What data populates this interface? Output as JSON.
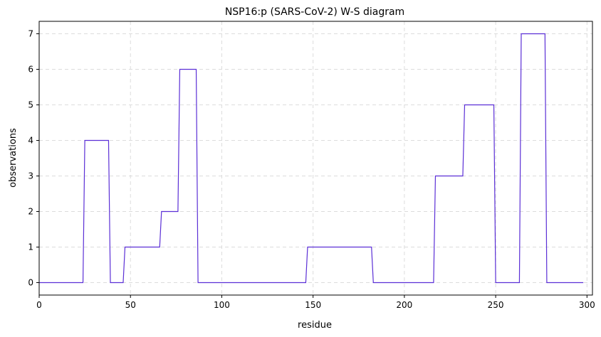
{
  "chart_data": {
    "type": "line",
    "title": "NSP16:p (SARS-CoV-2) W-S diagram",
    "xlabel": "residue",
    "ylabel": "observations",
    "xlim": [
      0,
      303
    ],
    "ylim": [
      -0.35,
      7.35
    ],
    "x_ticks": [
      0,
      50,
      100,
      150,
      200,
      250,
      300
    ],
    "y_ticks": [
      0,
      1,
      2,
      3,
      4,
      5,
      6,
      7
    ],
    "grid": true,
    "grid_style": "dashed",
    "series": [
      {
        "color": "#5b2fd6",
        "x": [
          0,
          24,
          25,
          38,
          39,
          46,
          47,
          66,
          67,
          76,
          77,
          86,
          87,
          146,
          147,
          182,
          183,
          216,
          217,
          232,
          233,
          249,
          250,
          263,
          264,
          277,
          278,
          298
        ],
        "y": [
          0,
          0,
          4,
          4,
          0,
          0,
          1,
          1,
          2,
          2,
          6,
          6,
          0,
          0,
          1,
          1,
          0,
          0,
          3,
          3,
          5,
          5,
          0,
          0,
          7,
          7,
          0,
          0
        ]
      }
    ]
  }
}
